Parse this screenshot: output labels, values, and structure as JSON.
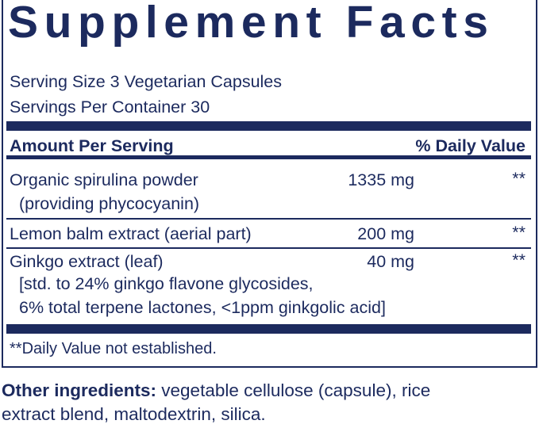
{
  "title": "Supplement Facts",
  "serving_size": "Serving Size 3 Vegetarian Capsules",
  "servings_per_container": "Servings Per Container 30",
  "header": {
    "amount": "Amount Per Serving",
    "daily_value": "% Daily Value"
  },
  "ingredients": [
    {
      "name": "Organic spirulina powder",
      "sub": [
        "(providing phycocyanin)"
      ],
      "amount": "1335 mg",
      "dv": "**"
    },
    {
      "name": "Lemon balm extract (aerial part)",
      "sub": [],
      "amount": "200 mg",
      "dv": "**"
    },
    {
      "name": "Ginkgo extract (leaf)",
      "sub": [
        "[std. to 24% ginkgo flavone glycosides,",
        "6% total terpene lactones, <1ppm ginkgolic acid]"
      ],
      "amount": "40 mg",
      "dv": "**"
    }
  ],
  "footnote": "**Daily Value not established.",
  "other": {
    "label": "Other ingredients:",
    "line1": " vegetable cellulose (capsule), rice",
    "line2": "extract blend, maltodextrin, silica."
  },
  "colors": {
    "navy": "#1c2a5e"
  }
}
